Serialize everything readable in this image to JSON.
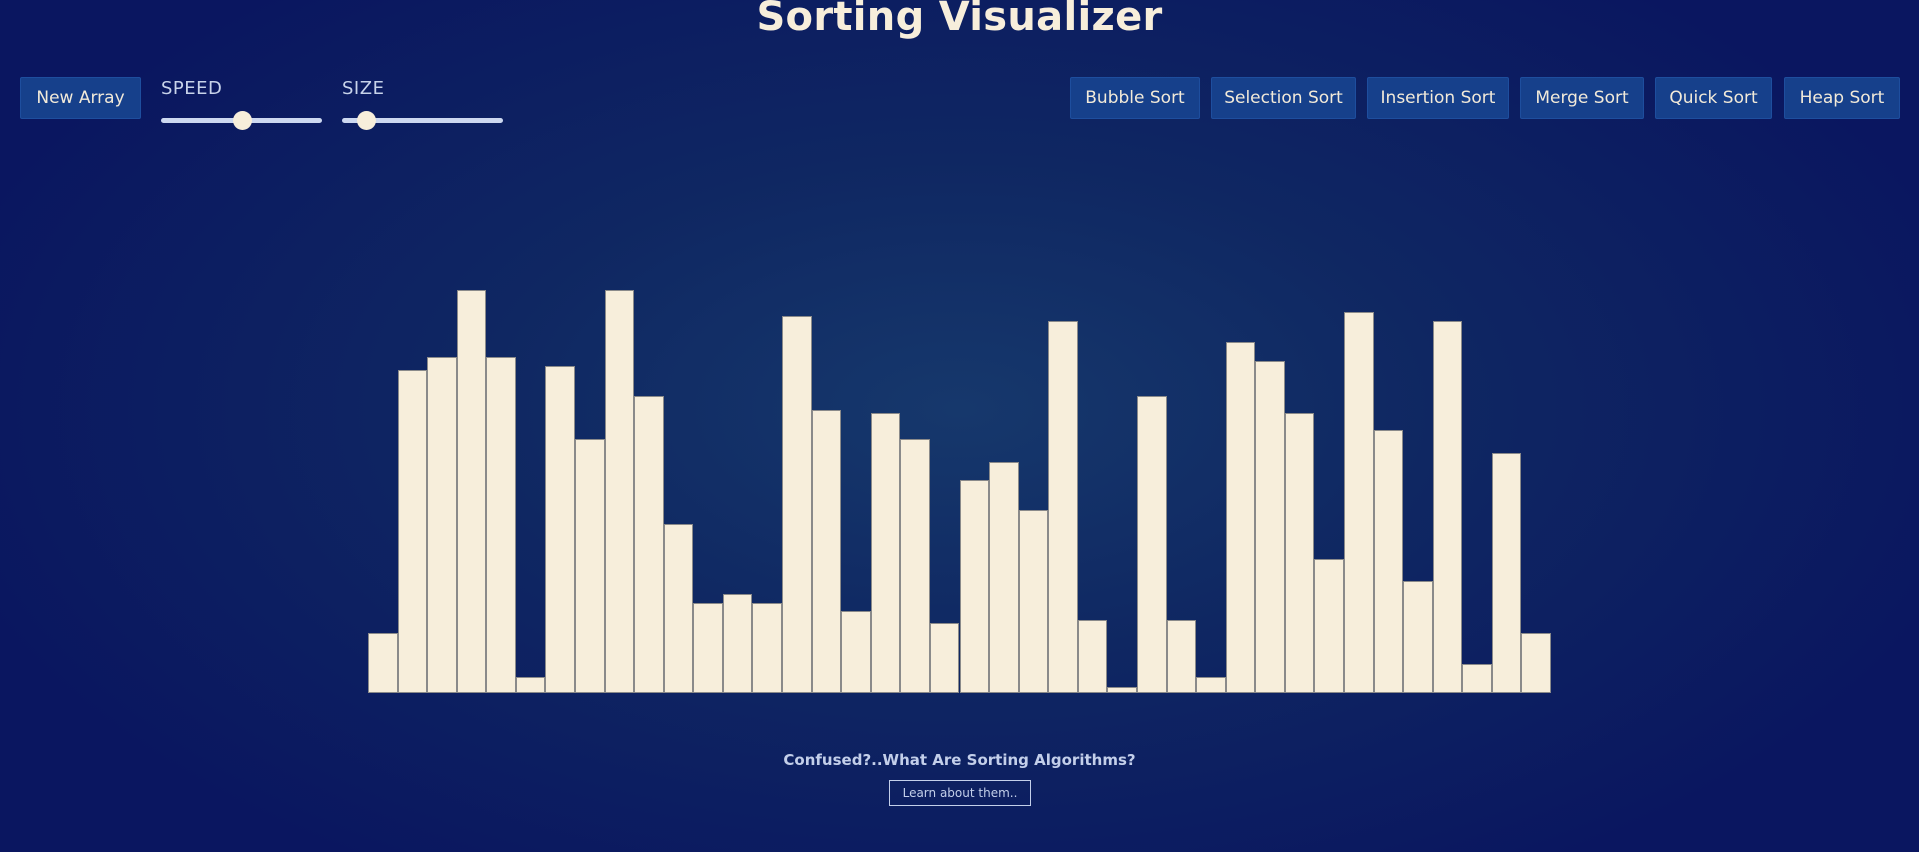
{
  "header": {
    "title": "Sorting Visualizer"
  },
  "controls": {
    "new_array_label": "New Array",
    "speed": {
      "label": "SPEED",
      "value": 0.5
    },
    "size": {
      "label": "SIZE",
      "value": 0.15
    }
  },
  "algorithms": [
    {
      "label": "Bubble Sort"
    },
    {
      "label": "Selection Sort"
    },
    {
      "label": "Insertion Sort"
    },
    {
      "label": "Merge Sort"
    },
    {
      "label": "Quick Sort"
    },
    {
      "label": "Heap Sort"
    }
  ],
  "array": {
    "max": 400,
    "values": [
      60,
      321,
      334,
      400,
      334,
      16,
      325,
      252,
      400,
      295,
      168,
      89,
      98,
      89,
      374,
      281,
      81,
      278,
      252,
      69,
      211,
      229,
      182,
      369,
      72,
      6,
      295,
      72,
      16,
      348,
      330,
      278,
      133,
      378,
      261,
      111,
      369,
      29,
      238,
      60
    ]
  },
  "colors": {
    "bar": "#f7eedb",
    "button": "#16408b",
    "background": "#0a1660"
  },
  "footer": {
    "question": "Confused?..What Are Sorting Algorithms?",
    "learn_label": "Learn about them.."
  }
}
